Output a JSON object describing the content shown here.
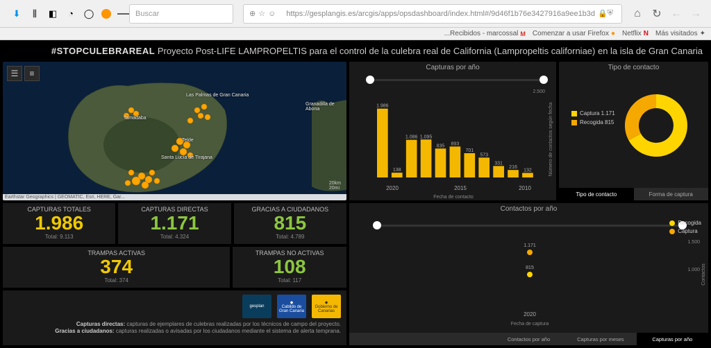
{
  "browser": {
    "url": "https://gesplangis.es/arcgis/apps/opsdashboard/index.html#/9d46f1b76e3427916a9ee1b3d",
    "search_placeholder": "Buscar"
  },
  "bookmarks": {
    "mas_visitados": "Más visitados",
    "netflix": "Netflix",
    "usar_firefox": "Comenzar a usar Firefox",
    "recibidos": "Recibidos - marcossal..."
  },
  "title": {
    "hashtag": "#STOPCULEBRAREAL",
    "rest": "Proyecto Post-LIFE LAMPROPELTIS para el control de la culebra real de California (Lampropeltis californiae) en la isla de Gran Canaria"
  },
  "map": {
    "attribution": "Earthstar Geographics | GEOMATIC, Esri, HERE, Gar...",
    "scale1": "20km",
    "scale2": "20mi",
    "labels": {
      "las_palmas": "Las Palmas de Gran Canaria",
      "tamadaba": "Tamadaba",
      "telde": "Telde",
      "santa_lucia": "Santa Lucía de Tirajana",
      "granadilla": "Granadilla de Abona"
    }
  },
  "indicators": {
    "capturas_totales": {
      "label": "CAPTURAS TOTALES",
      "value": "1.986",
      "total": "Total: 9.113"
    },
    "capturas_directas": {
      "label": "CAPTURAS DIRECTAS",
      "value": "1.171",
      "total": "Total: 4.324"
    },
    "gracias": {
      "label": "GRACIAS A CIUDADANOS",
      "value": "815",
      "total": "Total: 4.789"
    },
    "trampas_activas": {
      "label": "TRAMPAS ACTIVAS",
      "value": "374",
      "total": "Total: 374"
    },
    "trampas_no": {
      "label": "TRAMPAS NO ACTIVAS",
      "value": "108",
      "total": "Total: 117"
    }
  },
  "logos": {
    "gesplan": "gesplan",
    "cabildo": "Cabildo de Gran Canaria",
    "gobierno": "Gobierno de Canarias",
    "desc1_b": "Capturas directas:",
    "desc1": " capturas de ejemplares de culebras realizadas por los técnicos de campo del proyecto.",
    "desc2_b": "Gracias a ciudadanos:",
    "desc2": " capturas realizadas o avisadas por los ciudadanos mediante el sistema de alerta temprana."
  },
  "bar_chart": {
    "title": "Capturas por año",
    "ylabel": "Número de contactos según fecha",
    "xlabel": "Fecha de contacto",
    "years": [
      "2010",
      "",
      "",
      "",
      "",
      "2015",
      "",
      "",
      "",
      "",
      "2020"
    ],
    "ticks": [
      "2010",
      "2015",
      "2020"
    ],
    "values": [
      132,
      216,
      331,
      573,
      701,
      893,
      835,
      1095,
      1086,
      138,
      1986
    ],
    "ylim": [
      0,
      2500
    ],
    "ytick": 2500,
    "bar_color": "#f5b800",
    "highlight_idx": 10
  },
  "donut": {
    "title": "Tipo de contacto",
    "captura_label": "Captura 1.171",
    "recogida_label": "Recogida 815",
    "captura_val": 1171,
    "recogida_val": 815,
    "color_captura": "#ffd500",
    "color_recogida": "#f5a800",
    "tab1": "Tipo de contacto",
    "tab2": "Forma de captura"
  },
  "scatter": {
    "title": "Contactos por año",
    "ylabel": "Contactos",
    "xlabel": "Fecha de captura",
    "label1": "1.171",
    "label2": "815",
    "xtick": "2020",
    "ytick1": "1.500",
    "ytick2": "1.000",
    "leg1": "Recogida",
    "leg2": "Captura",
    "tab1": "Contactos por año",
    "tab2": "Capturas por meses",
    "tab3": "Capturas por año"
  }
}
